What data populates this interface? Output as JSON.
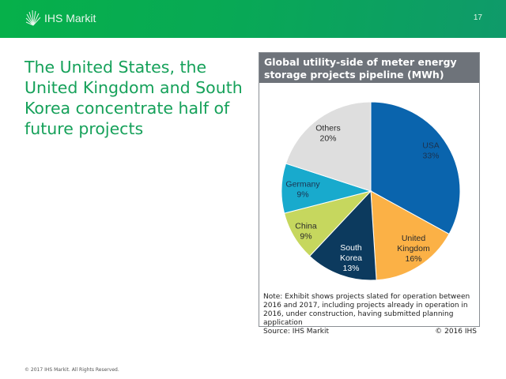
{
  "header": {
    "brand": "IHS Markit",
    "page_number": "17"
  },
  "headline": "The United States, the United Kingdom and South Korea concentrate half of future projects",
  "exhibit": {
    "title": "Global utility-side of meter energy storage projects pipeline (MWh)",
    "note": "Note: Exhibit shows projects slated for operation between 2016 and 2017, including projects already in operation in 2016, under construction, having submitted planning application",
    "source": "Source: IHS Markit",
    "copyright": "© 2016 IHS"
  },
  "chart_data": {
    "type": "pie",
    "title": "Global utility-side of meter energy storage projects pipeline (MWh)",
    "start": "12 o'clock, clockwise",
    "slices": [
      {
        "label": "USA",
        "value": 33,
        "display": "33%",
        "color": "#0a64ad",
        "text_color": "#1b3350"
      },
      {
        "label": "United Kingdom",
        "value": 16,
        "display": "16%",
        "color": "#fbb146",
        "text_color": "#2a2a2a"
      },
      {
        "label": "South Korea",
        "value": 13,
        "display": "13%",
        "color": "#0c3a5e",
        "text_color": "#ffffff"
      },
      {
        "label": "China",
        "value": 9,
        "display": "9%",
        "color": "#c6d75e",
        "text_color": "#2a2a2a"
      },
      {
        "label": "Germany",
        "value": 9,
        "display": "9%",
        "color": "#18aacd",
        "text_color": "#1b3350"
      },
      {
        "label": "Others",
        "value": 20,
        "display": "20%",
        "color": "#dedede",
        "text_color": "#2a2a2a"
      }
    ]
  },
  "footer": "© 2017 IHS Markit. All Rights Reserved."
}
